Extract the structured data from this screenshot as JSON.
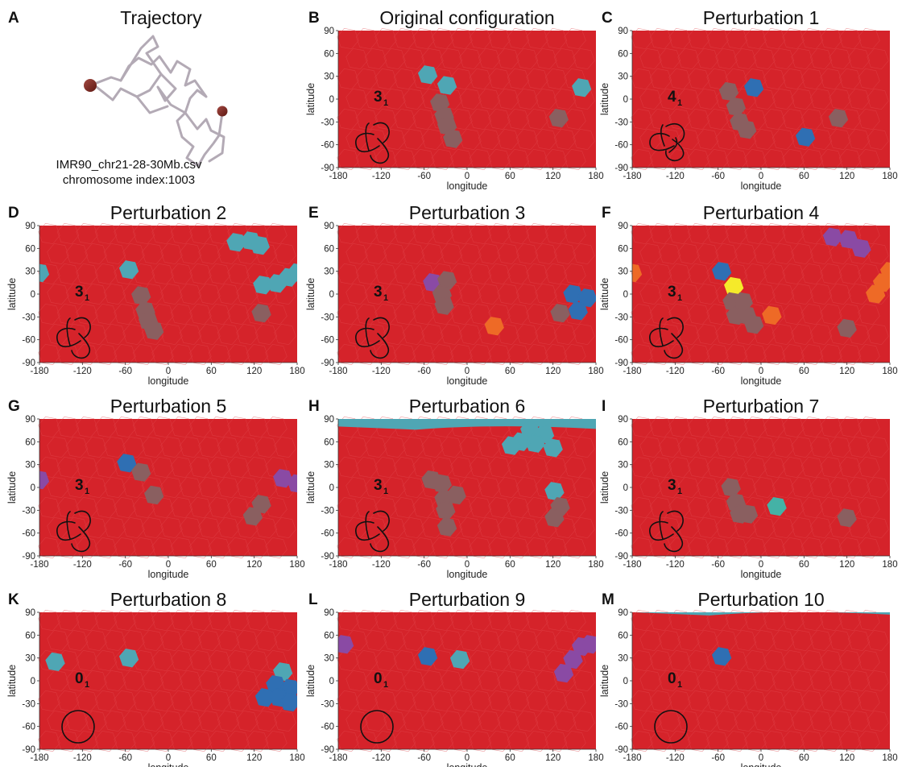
{
  "colors": {
    "background_red": "#d5232a",
    "cell_line": "#e2494f",
    "gray": "#8a5f60",
    "cyan": "#4fa6b4",
    "blue": "#2f6fb3",
    "purple": "#8a4aa4",
    "orange": "#ee6a26",
    "yellow": "#f5ea2a",
    "teal": "#44b2a6"
  },
  "axis": {
    "xlabel": "longitude",
    "ylabel": "latitude",
    "xticks": [
      "-180",
      "-120",
      "-60",
      "0",
      "60",
      "120",
      "180"
    ],
    "yticks": [
      "90",
      "60",
      "30",
      "0",
      "-30",
      "-60",
      "-90"
    ]
  },
  "panel_a": {
    "letter": "A",
    "title": "Trajectory",
    "file_name": "IMR90_chr21-28-30Mb.csv",
    "index_label": "chromosome index:1003"
  },
  "panels": [
    {
      "letter": "B",
      "title": "Original configuration",
      "knot": "3",
      "knot_sub": "1",
      "knot_type": "trefoil",
      "caps": [],
      "regions": [
        {
          "color": "cyan",
          "pts": [
            [
              -55,
              32
            ],
            [
              -28,
              18
            ]
          ]
        },
        {
          "color": "cyan",
          "pts": [
            [
              160,
              15
            ]
          ]
        },
        {
          "color": "gray",
          "pts": [
            [
              -38,
              -5
            ],
            [
              -32,
              -22
            ],
            [
              -28,
              -35
            ],
            [
              -20,
              -52
            ]
          ]
        },
        {
          "color": "gray",
          "pts": [
            [
              128,
              -25
            ]
          ]
        }
      ]
    },
    {
      "letter": "C",
      "title": "Perturbation 1",
      "knot": "4",
      "knot_sub": "1",
      "knot_type": "figure8",
      "caps": [],
      "regions": [
        {
          "color": "gray",
          "pts": [
            [
              -45,
              10
            ],
            [
              -35,
              -10
            ],
            [
              -30,
              -30
            ],
            [
              -20,
              -40
            ]
          ]
        },
        {
          "color": "blue",
          "pts": [
            [
              -10,
              15
            ]
          ]
        },
        {
          "color": "blue",
          "pts": [
            [
              62,
              -50
            ]
          ]
        },
        {
          "color": "gray",
          "pts": [
            [
              108,
              -25
            ]
          ]
        }
      ]
    },
    {
      "letter": "D",
      "title": "Perturbation 2",
      "knot": "3",
      "knot_sub": "1",
      "knot_type": "trefoil",
      "caps": [],
      "regions": [
        {
          "color": "cyan",
          "pts": [
            [
              95,
              68
            ],
            [
              115,
              70
            ],
            [
              128,
              64
            ]
          ]
        },
        {
          "color": "cyan",
          "pts": [
            [
              -55,
              32
            ]
          ]
        },
        {
          "color": "cyan",
          "pts": [
            [
              -180,
              28
            ]
          ]
        },
        {
          "color": "cyan",
          "pts": [
            [
              132,
              12
            ],
            [
              152,
              14
            ],
            [
              168,
              22
            ],
            [
              180,
              28
            ]
          ]
        },
        {
          "color": "gray",
          "pts": [
            [
              -38,
              -2
            ],
            [
              -32,
              -22
            ],
            [
              -28,
              -35
            ],
            [
              -20,
              -48
            ]
          ]
        },
        {
          "color": "gray",
          "pts": [
            [
              130,
              -25
            ]
          ]
        }
      ]
    },
    {
      "letter": "E",
      "title": "Perturbation 3",
      "knot": "3",
      "knot_sub": "1",
      "knot_type": "trefoil",
      "caps": [],
      "regions": [
        {
          "color": "purple",
          "pts": [
            [
              -48,
              15
            ]
          ]
        },
        {
          "color": "gray",
          "pts": [
            [
              -28,
              18
            ],
            [
              -35,
              0
            ],
            [
              -32,
              -15
            ]
          ]
        },
        {
          "color": "orange",
          "pts": [
            [
              38,
              -42
            ]
          ]
        },
        {
          "color": "gray",
          "pts": [
            [
              130,
              -25
            ]
          ]
        },
        {
          "color": "blue",
          "pts": [
            [
              148,
              0
            ],
            [
              168,
              -5
            ],
            [
              155,
              -22
            ]
          ]
        }
      ]
    },
    {
      "letter": "F",
      "title": "Perturbation 4",
      "knot": "3",
      "knot_sub": "1",
      "knot_type": "trefoil",
      "caps": [],
      "regions": [
        {
          "color": "purple",
          "pts": [
            [
              100,
              75
            ],
            [
              122,
              72
            ],
            [
              140,
              60
            ]
          ]
        },
        {
          "color": "orange",
          "pts": [
            [
              -180,
              28
            ]
          ]
        },
        {
          "color": "orange",
          "pts": [
            [
              180,
              30
            ],
            [
              170,
              15
            ],
            [
              160,
              0
            ]
          ]
        },
        {
          "color": "blue",
          "pts": [
            [
              -55,
              30
            ]
          ]
        },
        {
          "color": "yellow",
          "pts": [
            [
              -38,
              10
            ]
          ]
        },
        {
          "color": "gray",
          "pts": [
            [
              -40,
              -10
            ],
            [
              -35,
              -28
            ],
            [
              -20,
              -28
            ],
            [
              -10,
              -40
            ],
            [
              -25,
              -10
            ]
          ]
        },
        {
          "color": "orange",
          "pts": [
            [
              15,
              -28
            ]
          ]
        },
        {
          "color": "gray",
          "pts": [
            [
              120,
              -45
            ]
          ]
        }
      ]
    },
    {
      "letter": "G",
      "title": "Perturbation 5",
      "knot": "3",
      "knot_sub": "1",
      "knot_type": "trefoil",
      "caps": [],
      "regions": [
        {
          "color": "blue",
          "pts": [
            [
              -58,
              32
            ]
          ]
        },
        {
          "color": "gray",
          "pts": [
            [
              -38,
              20
            ],
            [
              -20,
              -10
            ]
          ]
        },
        {
          "color": "purple",
          "pts": [
            [
              -180,
              10
            ]
          ]
        },
        {
          "color": "purple",
          "pts": [
            [
              160,
              12
            ],
            [
              180,
              5
            ]
          ]
        },
        {
          "color": "gray",
          "pts": [
            [
              130,
              -22
            ],
            [
              118,
              -38
            ]
          ]
        }
      ]
    },
    {
      "letter": "H",
      "title": "Perturbation 6",
      "knot": "3",
      "knot_sub": "1",
      "knot_type": "trefoil",
      "caps": [
        {
          "color": "cyan",
          "edge": "top",
          "lat": 78
        }
      ],
      "regions": [
        {
          "color": "cyan",
          "pts": [
            [
              88,
              75
            ],
            [
              108,
              70
            ],
            [
              120,
              52
            ],
            [
              95,
              58
            ],
            [
              75,
              60
            ],
            [
              62,
              55
            ]
          ]
        },
        {
          "color": "gray",
          "pts": [
            [
              -50,
              10
            ],
            [
              -35,
              5
            ],
            [
              -32,
              -15
            ],
            [
              -30,
              -30
            ],
            [
              -28,
              -52
            ],
            [
              -15,
              -10
            ]
          ]
        },
        {
          "color": "cyan",
          "pts": [
            [
              122,
              -5
            ]
          ]
        },
        {
          "color": "gray",
          "pts": [
            [
              130,
              -25
            ],
            [
              122,
              -40
            ]
          ]
        }
      ]
    },
    {
      "letter": "I",
      "title": "Perturbation 7",
      "knot": "3",
      "knot_sub": "1",
      "knot_type": "trefoil",
      "caps": [],
      "regions": [
        {
          "color": "gray",
          "pts": [
            [
              -42,
              0
            ],
            [
              -35,
              -20
            ],
            [
              -30,
              -35
            ],
            [
              -18,
              -35
            ]
          ]
        },
        {
          "color": "teal",
          "pts": [
            [
              22,
              -25
            ]
          ]
        },
        {
          "color": "gray",
          "pts": [
            [
              120,
              -40
            ]
          ]
        }
      ]
    },
    {
      "letter": "K",
      "title": "Perturbation 8",
      "knot": "0",
      "knot_sub": "1",
      "knot_type": "unknot",
      "caps": [],
      "regions": [
        {
          "color": "cyan",
          "pts": [
            [
              -158,
              25
            ]
          ]
        },
        {
          "color": "cyan",
          "pts": [
            [
              -55,
              30
            ]
          ]
        },
        {
          "color": "cyan",
          "pts": [
            [
              160,
              12
            ]
          ]
        },
        {
          "color": "blue",
          "pts": [
            [
              150,
              -5
            ],
            [
              170,
              -10
            ],
            [
              135,
              -22
            ],
            [
              155,
              -22
            ],
            [
              170,
              -28
            ]
          ]
        }
      ]
    },
    {
      "letter": "L",
      "title": "Perturbation 9",
      "knot": "0",
      "knot_sub": "1",
      "knot_type": "unknot",
      "caps": [],
      "regions": [
        {
          "color": "purple",
          "pts": [
            [
              -172,
              48
            ]
          ]
        },
        {
          "color": "blue",
          "pts": [
            [
              -55,
              32
            ]
          ]
        },
        {
          "color": "cyan",
          "pts": [
            [
              -10,
              28
            ]
          ]
        },
        {
          "color": "purple",
          "pts": [
            [
              160,
              45
            ],
            [
              172,
              48
            ],
            [
              148,
              28
            ],
            [
              135,
              10
            ]
          ]
        }
      ]
    },
    {
      "letter": "M",
      "title": "Perturbation 10",
      "knot": "0",
      "knot_sub": "1",
      "knot_type": "unknot",
      "caps": [
        {
          "color": "cyan",
          "edge": "top",
          "lat": 88
        }
      ],
      "regions": [
        {
          "color": "blue",
          "pts": [
            [
              -55,
              32
            ]
          ]
        }
      ]
    }
  ]
}
